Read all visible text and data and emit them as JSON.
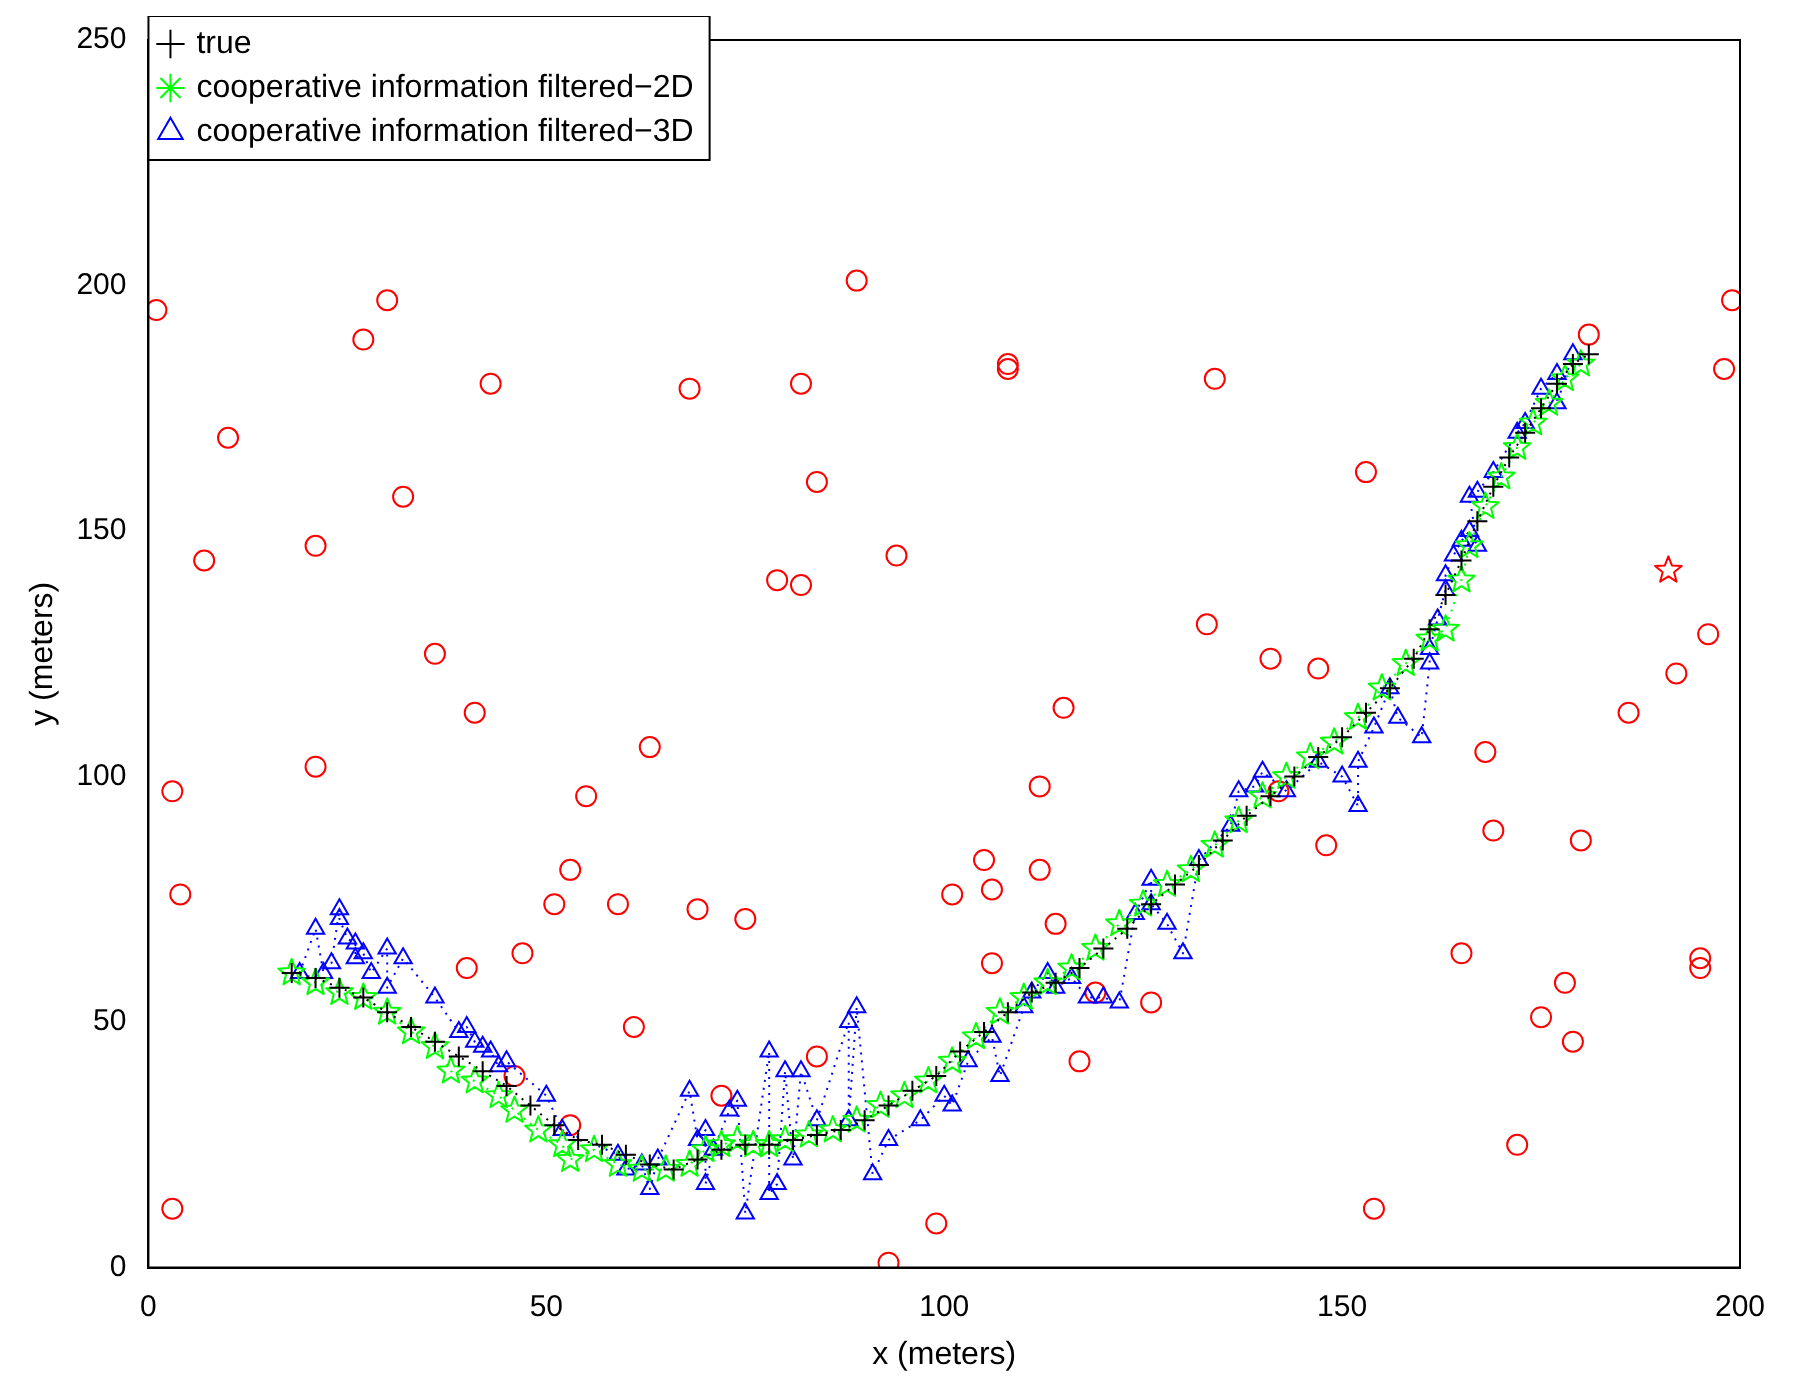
{
  "chart_data": {
    "type": "scatter",
    "xlabel": "x (meters)",
    "ylabel": "y (meters)",
    "xlim": [
      0,
      200
    ],
    "xticks": [
      0,
      50,
      100,
      150,
      200
    ],
    "ylim": [
      0,
      250
    ],
    "yticks": [
      0,
      50,
      100,
      150,
      200,
      250
    ],
    "grid": false,
    "legend": "top left",
    "series": [
      {
        "name": "true",
        "type": "line",
        "color": "#000000",
        "marker": "cross",
        "line_style": "dotted",
        "x": [
          18,
          21,
          24,
          27,
          30,
          33,
          36,
          39,
          42,
          45,
          48,
          51,
          54,
          57,
          60,
          63,
          66,
          69,
          72,
          75,
          78,
          81,
          84,
          87,
          90,
          93,
          96,
          99,
          102,
          105,
          108,
          111,
          114,
          117,
          120,
          123,
          126,
          129,
          132,
          135,
          138,
          141,
          144,
          147,
          150,
          153,
          156,
          159,
          161,
          163,
          165,
          167,
          169,
          171,
          173,
          175,
          177,
          179,
          181
        ],
        "values": [
          60,
          59,
          57,
          55,
          52,
          49,
          46,
          43,
          40,
          37,
          33,
          29,
          26,
          25,
          23,
          21,
          20,
          22,
          24,
          25,
          25,
          26,
          27,
          28,
          30,
          33,
          36,
          39,
          44,
          48,
          52,
          56,
          58,
          61,
          65,
          69,
          74,
          78,
          82,
          87,
          92,
          96,
          100,
          104,
          108,
          113,
          118,
          124,
          130,
          137,
          144,
          152,
          159,
          165,
          170,
          175,
          180,
          184,
          186
        ]
      },
      {
        "name": "cooperative information filtered−2D",
        "type": "line",
        "color": "#00ff00",
        "marker": "star",
        "line_style": "dotted",
        "x": [
          18,
          21,
          24,
          27,
          30,
          33,
          36,
          38,
          41,
          44,
          46,
          49,
          52,
          53,
          56,
          59,
          62,
          65,
          68,
          70,
          72,
          74,
          76,
          78,
          80,
          83,
          86,
          89,
          92,
          95,
          98,
          101,
          104,
          107,
          110,
          113,
          116,
          119,
          122,
          125,
          128,
          131,
          134,
          137,
          140,
          143,
          146,
          149,
          152,
          155,
          158,
          161,
          163,
          165,
          166,
          168,
          170,
          172,
          174,
          176,
          178,
          180
        ],
        "values": [
          60,
          58,
          56,
          55,
          52,
          48,
          45,
          40,
          38,
          35,
          32,
          28,
          25,
          22,
          24,
          21,
          20,
          20,
          21,
          24,
          25,
          26,
          25,
          25,
          26,
          27,
          28,
          30,
          33,
          35,
          38,
          42,
          47,
          52,
          55,
          58,
          61,
          65,
          70,
          74,
          78,
          81,
          86,
          91,
          96,
          100,
          104,
          107,
          112,
          118,
          123,
          128,
          130,
          140,
          147,
          155,
          161,
          167,
          172,
          176,
          181,
          184
        ]
      },
      {
        "name": "cooperative information filtered−3D",
        "type": "line",
        "color": "#0000ff",
        "marker": "triangle",
        "line_style": "dotted",
        "x": [
          19,
          21,
          22,
          23,
          24,
          24,
          25,
          26,
          26,
          27,
          28,
          30,
          30,
          32,
          36,
          39,
          40,
          41,
          42,
          43,
          44,
          45,
          50,
          52,
          59,
          60,
          62,
          63,
          64,
          68,
          69,
          70,
          70,
          71,
          73,
          74,
          75,
          78,
          78,
          79,
          80,
          81,
          82,
          84,
          88,
          88,
          89,
          91,
          93,
          97,
          100,
          101,
          103,
          106,
          107,
          110,
          111,
          113,
          114,
          116,
          118,
          120,
          122,
          124,
          126,
          126,
          128,
          130,
          132,
          136,
          137,
          139,
          140,
          143,
          147,
          150,
          152,
          152,
          154,
          156,
          157,
          160,
          161,
          161,
          162,
          163,
          163,
          164,
          165,
          166,
          167,
          166,
          167,
          169,
          172,
          173,
          175,
          177,
          177,
          179
        ],
        "values": [
          60,
          69,
          60,
          62,
          73,
          71,
          67,
          66,
          63,
          64,
          60,
          65,
          57,
          63,
          55,
          48,
          49,
          46,
          45,
          44,
          41,
          42,
          35,
          28,
          23,
          20,
          21,
          16,
          22,
          36,
          26,
          28,
          17,
          24,
          32,
          34,
          11,
          44,
          15,
          17,
          40,
          22,
          40,
          30,
          50,
          30,
          53,
          19,
          26,
          30,
          35,
          33,
          42,
          47,
          39,
          53,
          56,
          60,
          57,
          59,
          55,
          55,
          54,
          72,
          79,
          74,
          70,
          64,
          83,
          90,
          97,
          98,
          101,
          97,
          103,
          100,
          94,
          103,
          110,
          118,
          112,
          108,
          123,
          126,
          132,
          138,
          141,
          145,
          148,
          150,
          147,
          157,
          158,
          162,
          170,
          172,
          179,
          182,
          176,
          186
        ]
      },
      {
        "type": "scatter",
        "color": "#ff0000",
        "marker": "circle",
        "x": [
          1,
          30,
          27,
          43,
          68,
          10,
          32,
          7,
          21,
          36,
          41,
          63,
          21,
          3,
          55,
          53,
          4,
          51,
          59,
          69,
          75,
          40,
          47,
          61,
          46,
          72,
          53,
          3,
          89,
          82,
          108,
          108,
          134,
          84,
          94,
          79,
          82,
          133,
          115,
          112,
          105,
          112,
          101,
          106,
          114,
          106,
          119,
          126,
          117,
          84,
          99,
          93,
          199,
          181,
          198,
          153,
          196,
          192,
          186,
          141,
          147,
          168,
          142,
          169,
          180,
          148,
          165,
          195,
          195,
          178,
          175,
          179,
          172,
          154
        ],
        "values": [
          195,
          197,
          189,
          180,
          179,
          169,
          157,
          144,
          147,
          125,
          113,
          106,
          102,
          97,
          96,
          81,
          76,
          74,
          74,
          73,
          71,
          61,
          64,
          49,
          39,
          35,
          29,
          12,
          201,
          180,
          184,
          183,
          181,
          160,
          145,
          140,
          139,
          131,
          114,
          98,
          83,
          81,
          76,
          77,
          70,
          62,
          56,
          54,
          42,
          43,
          9,
          1,
          197,
          190,
          183,
          162,
          129,
          121,
          113,
          124,
          122,
          105,
          97,
          89,
          87,
          86,
          64,
          63,
          61,
          58,
          51,
          46,
          25,
          12
        ]
      },
      {
        "type": "scatter",
        "color": "#ff0000",
        "marker": "star",
        "x": [
          191
        ],
        "values": [
          142
        ]
      }
    ]
  }
}
